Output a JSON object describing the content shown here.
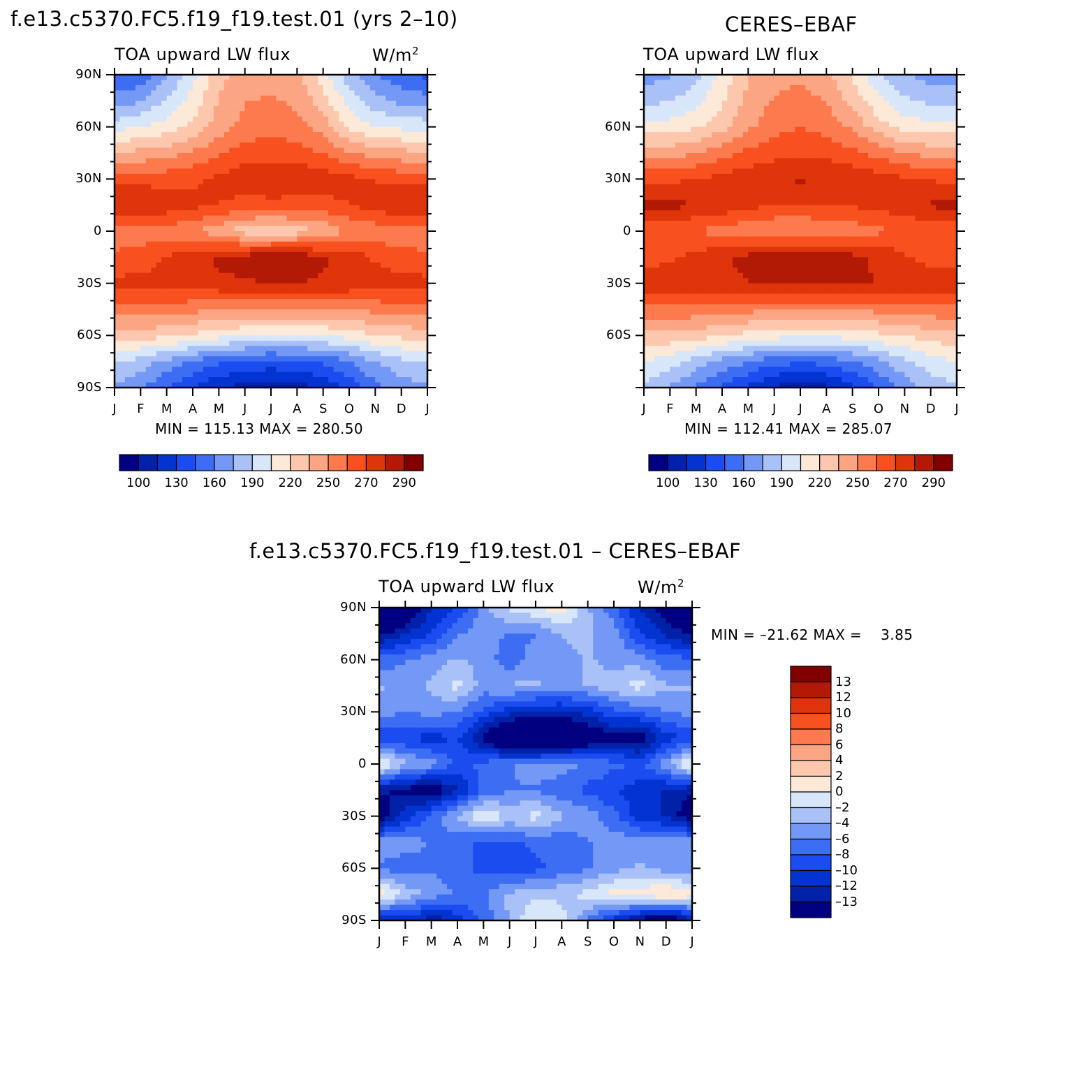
{
  "colors": {
    "levels": [
      "#000080",
      "#0021a8",
      "#0333d1",
      "#1a4cf0",
      "#3d6df2",
      "#7498f5",
      "#a9c1f7",
      "#d8e6fa",
      "#fce9d8",
      "#fcc7ad",
      "#fca582",
      "#fc7a4e",
      "#f9501f",
      "#e0340b",
      "#b21a06",
      "#800000"
    ],
    "text": "#000000"
  },
  "panels": {
    "model": {
      "title": "f.e13.c5370.FC5.f19_f19.test.01 (yrs 2–10)",
      "subtitle": "TOA upward LW flux",
      "units": "W/m",
      "units_sup": "2",
      "minmax": "MIN = 115.13 MAX = 280.50",
      "lat_labels": [
        "90N",
        "60N",
        "30N",
        "0",
        "30S",
        "60S",
        "90S"
      ],
      "month_labels": [
        "J",
        "F",
        "M",
        "A",
        "M",
        "J",
        "J",
        "A",
        "S",
        "O",
        "N",
        "D",
        "J"
      ]
    },
    "obs": {
      "title": "CERES–EBAF",
      "subtitle": "TOA upward LW flux",
      "minmax": "MIN = 112.41 MAX = 285.07",
      "lat_labels": [
        "60N",
        "30N",
        "0",
        "30S",
        "60S"
      ],
      "month_labels": [
        "J",
        "F",
        "M",
        "A",
        "M",
        "J",
        "J",
        "A",
        "S",
        "O",
        "N",
        "D",
        "J"
      ]
    },
    "diff": {
      "title": "f.e13.c5370.FC5.f19_f19.test.01 – CERES–EBAF",
      "subtitle": "TOA upward LW flux",
      "units": "W/m",
      "units_sup": "2",
      "minmax": "MIN = –21.62 MAX =    3.85",
      "lat_labels": [
        "90N",
        "60N",
        "30N",
        "0",
        "30S",
        "60S",
        "90S"
      ],
      "month_labels": [
        "J",
        "F",
        "M",
        "A",
        "M",
        "J",
        "J",
        "A",
        "S",
        "O",
        "N",
        "D",
        "J"
      ]
    }
  },
  "colorbars": {
    "horizontal_labels": [
      "100",
      "130",
      "160",
      "190",
      "220",
      "250",
      "270",
      "290"
    ],
    "vertical_labels": [
      "13",
      "12",
      "10",
      "8",
      "6",
      "4",
      "2",
      "0",
      "–2",
      "–4",
      "–6",
      "–8",
      "–10",
      "–12",
      "–13"
    ]
  },
  "chart_data": [
    {
      "type": "heatmap",
      "title": "f.e13.c5370.FC5.f19_f19.test.01 (yrs 2–10)",
      "subtitle": "TOA upward LW flux",
      "units": "W/m2",
      "x": [
        "J",
        "F",
        "M",
        "A",
        "M",
        "J",
        "J",
        "A",
        "S",
        "O",
        "N",
        "D",
        "J"
      ],
      "y": [
        90,
        75,
        60,
        45,
        30,
        15,
        0,
        -15,
        -30,
        -45,
        -60,
        -75,
        -90
      ],
      "z": [
        [
          145,
          150,
          170,
          190,
          215,
          225,
          228,
          222,
          200,
          175,
          160,
          150,
          145
        ],
        [
          165,
          170,
          185,
          200,
          220,
          230,
          232,
          228,
          212,
          190,
          175,
          168,
          165
        ],
        [
          190,
          195,
          200,
          210,
          225,
          235,
          238,
          235,
          225,
          205,
          195,
          192,
          190
        ],
        [
          220,
          222,
          225,
          232,
          240,
          248,
          250,
          248,
          242,
          232,
          225,
          222,
          220
        ],
        [
          250,
          250,
          250,
          252,
          258,
          262,
          265,
          264,
          262,
          258,
          254,
          250,
          250
        ],
        [
          268,
          266,
          262,
          258,
          254,
          250,
          250,
          250,
          250,
          254,
          260,
          265,
          268
        ],
        [
          235,
          235,
          236,
          232,
          222,
          212,
          210,
          212,
          220,
          232,
          235,
          236,
          235
        ],
        [
          245,
          248,
          255,
          262,
          268,
          272,
          275,
          274,
          268,
          262,
          252,
          246,
          245
        ],
        [
          258,
          258,
          260,
          262,
          264,
          265,
          266,
          266,
          265,
          264,
          262,
          260,
          258
        ],
        [
          238,
          238,
          236,
          234,
          232,
          230,
          230,
          230,
          230,
          232,
          234,
          236,
          238
        ],
        [
          212,
          212,
          210,
          205,
          200,
          196,
          194,
          194,
          196,
          200,
          206,
          210,
          212
        ],
        [
          185,
          178,
          168,
          158,
          150,
          146,
          144,
          146,
          150,
          160,
          172,
          180,
          185
        ],
        [
          170,
          160,
          148,
          135,
          125,
          118,
          115,
          118,
          125,
          140,
          155,
          165,
          170
        ]
      ],
      "zlim": [
        100,
        290
      ],
      "min": 115.13,
      "max": 280.5
    },
    {
      "type": "heatmap",
      "title": "CERES–EBAF",
      "subtitle": "TOA upward LW flux",
      "units": "W/m2",
      "x": [
        "J",
        "F",
        "M",
        "A",
        "M",
        "J",
        "J",
        "A",
        "S",
        "O",
        "N",
        "D",
        "J"
      ],
      "y": [
        90,
        75,
        60,
        45,
        30,
        15,
        0,
        -15,
        -30,
        -45,
        -60,
        -75,
        -90
      ],
      "z": [
        [
          165,
          170,
          180,
          200,
          218,
          226,
          228,
          222,
          205,
          185,
          172,
          166,
          165
        ],
        [
          180,
          182,
          190,
          205,
          222,
          232,
          236,
          230,
          215,
          198,
          185,
          180,
          180
        ],
        [
          200,
          200,
          205,
          215,
          228,
          238,
          242,
          238,
          228,
          212,
          202,
          200,
          200
        ],
        [
          225,
          226,
          230,
          238,
          245,
          250,
          252,
          250,
          245,
          238,
          230,
          226,
          225
        ],
        [
          252,
          252,
          254,
          258,
          262,
          266,
          268,
          266,
          264,
          260,
          256,
          253,
          252
        ],
        [
          272,
          270,
          266,
          262,
          258,
          255,
          254,
          255,
          256,
          258,
          262,
          268,
          272
        ],
        [
          245,
          244,
          242,
          238,
          234,
          230,
          230,
          232,
          236,
          240,
          243,
          245,
          245
        ],
        [
          250,
          252,
          258,
          264,
          270,
          275,
          278,
          276,
          270,
          264,
          256,
          250,
          250
        ],
        [
          262,
          262,
          262,
          264,
          266,
          268,
          268,
          268,
          268,
          266,
          264,
          262,
          262
        ],
        [
          240,
          240,
          238,
          236,
          234,
          232,
          232,
          232,
          232,
          234,
          236,
          238,
          240
        ],
        [
          215,
          215,
          212,
          208,
          203,
          200,
          198,
          198,
          200,
          204,
          208,
          212,
          215
        ],
        [
          195,
          188,
          178,
          168,
          160,
          152,
          150,
          152,
          158,
          168,
          180,
          190,
          195
        ],
        [
          180,
          170,
          158,
          145,
          133,
          122,
          112,
          120,
          132,
          148,
          165,
          176,
          180
        ]
      ],
      "zlim": [
        100,
        290
      ],
      "min": 112.41,
      "max": 285.07
    },
    {
      "type": "heatmap",
      "title": "f.e13.c5370.FC5.f19_f19.test.01 – CERES–EBAF",
      "subtitle": "TOA upward LW flux",
      "units": "W/m2",
      "x": [
        "J",
        "F",
        "M",
        "A",
        "M",
        "J",
        "J",
        "A",
        "S",
        "O",
        "N",
        "D",
        "J"
      ],
      "y": [
        90,
        75,
        60,
        45,
        30,
        15,
        0,
        -15,
        -30,
        -45,
        -60,
        -75,
        -90
      ],
      "z": [
        [
          -16,
          -14,
          -10,
          -8,
          -4,
          -1,
          0,
          1,
          -3,
          -6,
          -10,
          -13,
          -16
        ],
        [
          -12,
          -10,
          -8,
          -5,
          -4,
          -5,
          -5,
          -3,
          -3,
          -4,
          -8,
          -10,
          -12
        ],
        [
          -6,
          -5,
          -4,
          -3,
          -4,
          -6,
          -4,
          -4,
          -3,
          -4,
          -4,
          -6,
          -6
        ],
        [
          -3,
          -4,
          -3,
          -1,
          -4,
          -3,
          -3,
          -4,
          -3,
          -2,
          -1,
          -3,
          -3
        ],
        [
          -4,
          -5,
          -4,
          -5,
          -7,
          -9,
          -10,
          -10,
          -9,
          -7,
          -6,
          -5,
          -4
        ],
        [
          -8,
          -8,
          -9,
          -8,
          -12,
          -16,
          -18,
          -16,
          -14,
          -12,
          -13,
          -9,
          -8
        ],
        [
          1,
          -3,
          -4,
          -7,
          -6,
          -5,
          -4,
          -4,
          -5,
          -6,
          -7,
          -4,
          1
        ],
        [
          -11,
          -12,
          -13,
          -10,
          -6,
          -5,
          -5,
          -6,
          -7,
          -8,
          -9,
          -10,
          -11
        ],
        [
          -13,
          -9,
          -6,
          -3,
          0,
          -2,
          -1,
          -3,
          -4,
          -6,
          -9,
          -10,
          -13
        ],
        [
          -4,
          -4,
          -5,
          -6,
          -7,
          -7,
          -6,
          -6,
          -5,
          -4,
          -4,
          -4,
          -4
        ],
        [
          -5,
          -6,
          -5,
          -6,
          -7,
          -8,
          -7,
          -6,
          -5,
          -4,
          -3,
          -4,
          -5
        ],
        [
          1,
          -2,
          -4,
          -5,
          -5,
          -3,
          -2,
          -2,
          -1,
          1,
          1,
          2,
          1
        ],
        [
          -10,
          -9,
          -11,
          -9,
          -6,
          -3,
          0,
          -1,
          -5,
          -9,
          -12,
          -15,
          -10
        ]
      ],
      "zlim": [
        -13,
        13
      ],
      "min": -21.62,
      "max": 3.85
    }
  ]
}
